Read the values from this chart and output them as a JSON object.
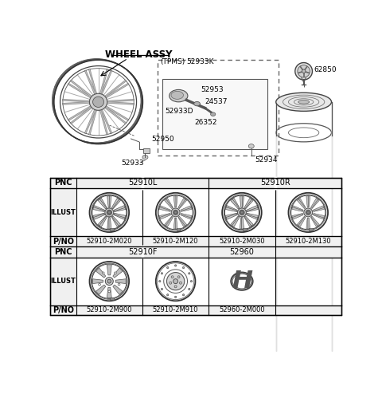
{
  "title": "WHEEL ASSY",
  "background_color": "#ffffff",
  "row1_pnc_left": "52910L",
  "row1_pnc_right": "52910R",
  "row1_pno": [
    "52910-2M020",
    "52910-2M120",
    "52910-2M030",
    "52910-2M130"
  ],
  "row2_pnc_left": "52910F",
  "row2_pnc_mid": "52960",
  "row2_pno": [
    "52910-2M900",
    "52910-2M910",
    "52960-2M000"
  ]
}
